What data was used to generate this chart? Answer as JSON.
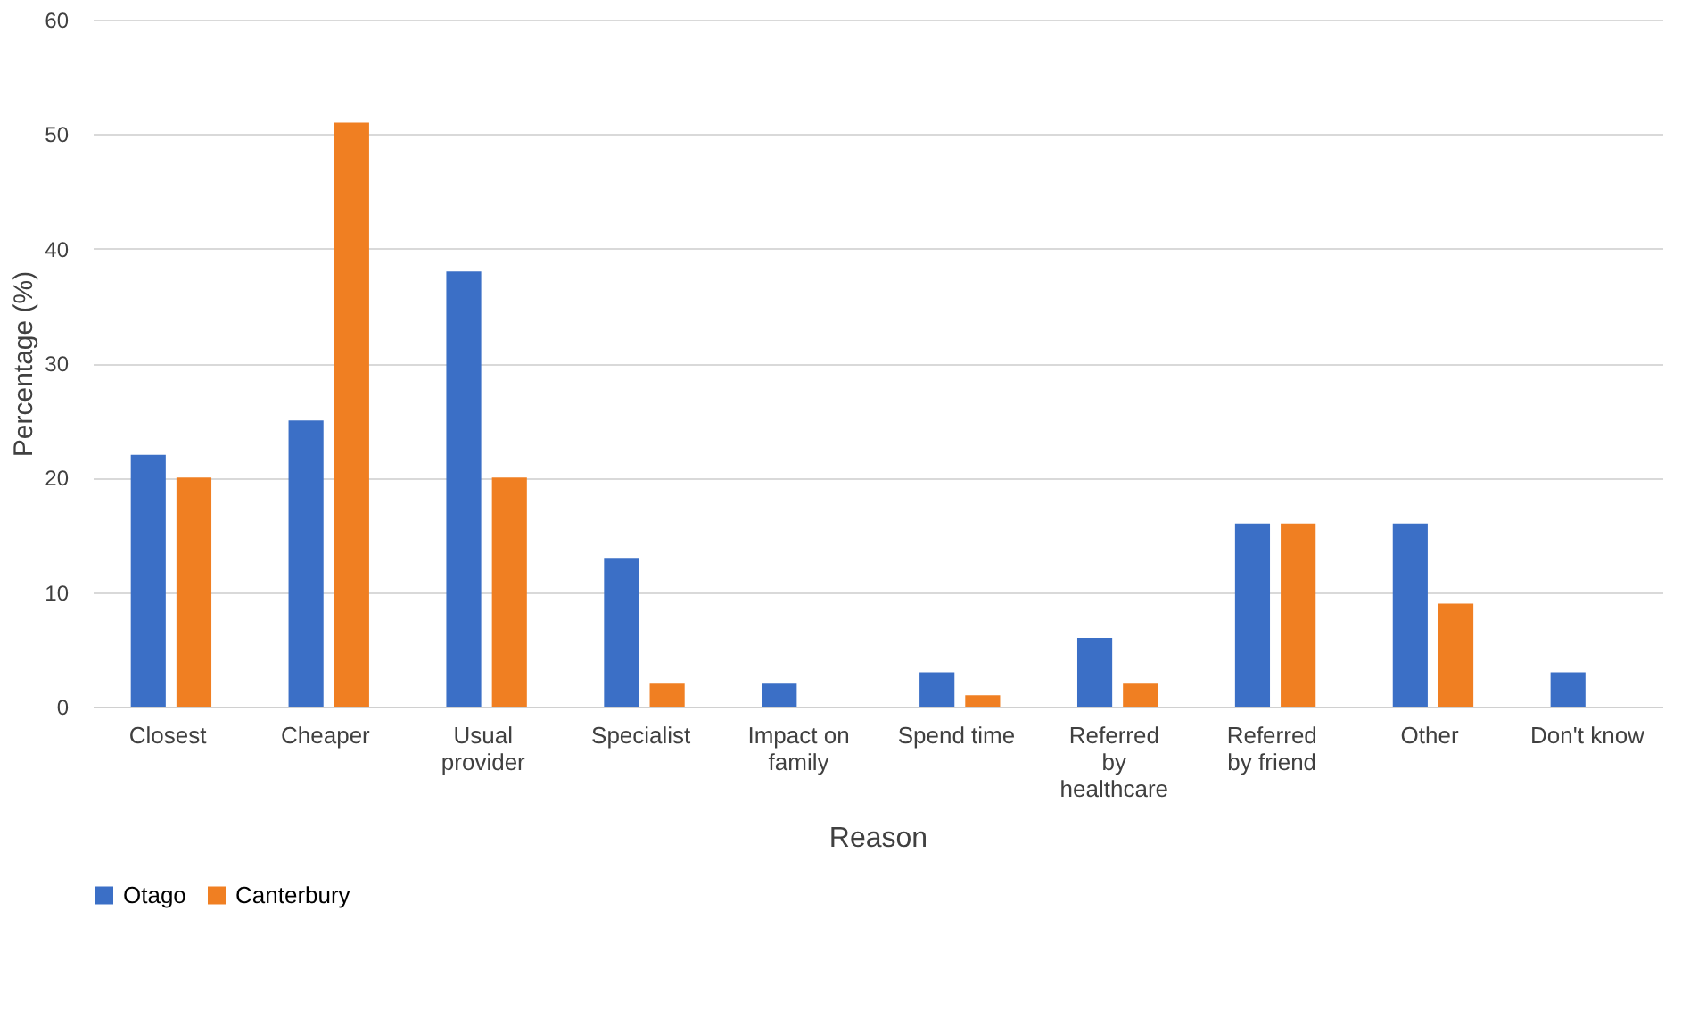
{
  "chart_data": {
    "type": "bar",
    "xlabel": "Reason",
    "ylabel": "Percentage (%)",
    "categories": [
      "Closest",
      "Cheaper",
      "Usual provider",
      "Specialist",
      "Impact on family",
      "Spend time",
      "Referred by healthcare",
      "Referred by friend",
      "Other",
      "Don't know"
    ],
    "series": [
      {
        "name": "Otago",
        "color": "#3b6fc6",
        "values": [
          22,
          25,
          38,
          13,
          2,
          3,
          6,
          16,
          16,
          3
        ]
      },
      {
        "name": "Canterbury",
        "color": "#f07f22",
        "values": [
          20,
          51,
          20,
          2,
          0,
          1,
          2,
          16,
          9,
          0
        ]
      }
    ],
    "ylim": [
      0,
      60
    ],
    "yticks": [
      0,
      10,
      20,
      30,
      40,
      50,
      60
    ],
    "grid": "y",
    "legend": "bottom"
  }
}
